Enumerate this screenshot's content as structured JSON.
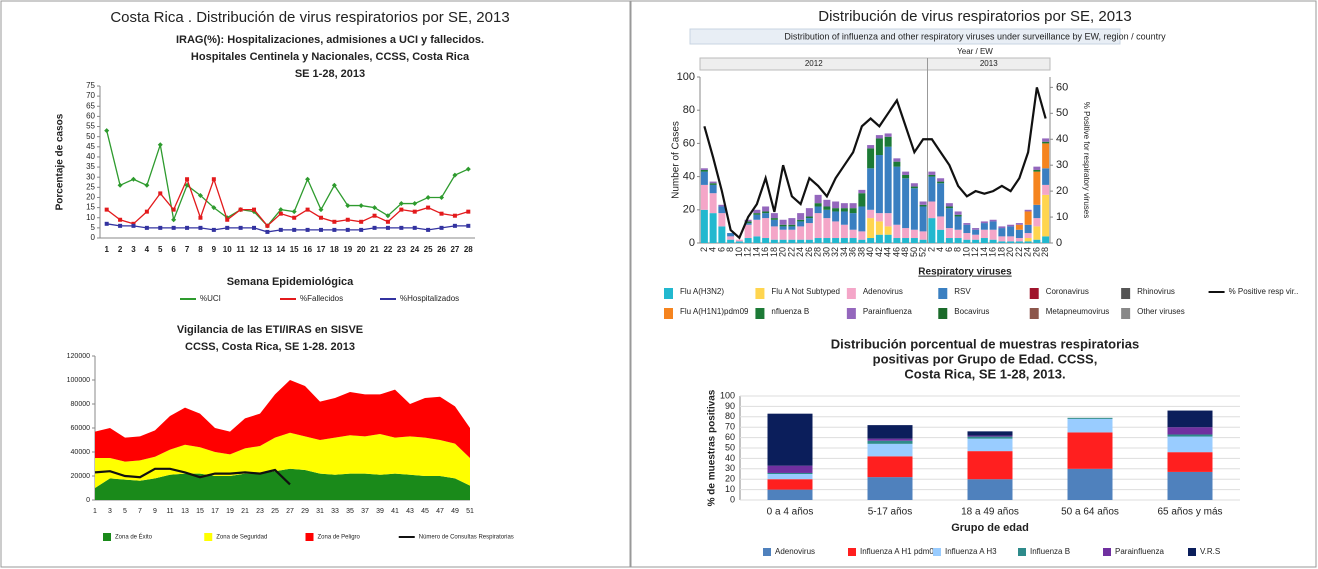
{
  "heading": "Costa Rica . Distribución de virus respiratorios por SE, 2013",
  "chart_data": [
    {
      "type": "line",
      "title": [
        "IRAG(%): Hospitalizaciones, admisiones a UCI y fallecidos.",
        "Hospitales Centinela y Nacionales, CCSS, Costa Rica",
        "SE 1-28, 2013"
      ],
      "y_label": "Porcentaje de casos",
      "x_label": "Semana Epidemiológica",
      "categories": [
        "1",
        "2",
        "3",
        "4",
        "5",
        "6",
        "7",
        "8",
        "9",
        "10",
        "11",
        "12",
        "13",
        "14",
        "15",
        "16",
        "17",
        "18",
        "19",
        "20",
        "21",
        "22",
        "23",
        "24",
        "25",
        "26",
        "27",
        "28"
      ],
      "ylim": [
        0,
        75
      ],
      "yticks": [
        0,
        5,
        10,
        15,
        20,
        25,
        30,
        35,
        40,
        45,
        50,
        55,
        60,
        65,
        70,
        75
      ],
      "grid": false,
      "markers": true,
      "series": [
        {
          "name": "%UCI",
          "color": "#2e9b2e",
          "values": [
            53,
            26,
            29,
            26,
            46,
            9,
            26,
            21,
            15,
            10,
            14,
            13,
            6,
            14,
            13,
            29,
            14,
            26,
            16,
            16,
            15,
            11,
            17,
            17,
            20,
            20,
            31,
            34
          ]
        },
        {
          "name": "%Fallecidos",
          "color": "#e31a1c",
          "values": [
            14,
            9,
            7,
            13,
            22,
            14,
            29,
            10,
            29,
            9,
            14,
            14,
            6,
            12,
            10,
            14,
            10,
            8,
            9,
            8,
            11,
            8,
            14,
            13,
            15,
            12,
            11,
            13
          ]
        },
        {
          "name": "%Hospitalizados",
          "color": "#3333a0",
          "values": [
            7,
            6,
            6,
            5,
            5,
            5,
            5,
            5,
            4,
            5,
            5,
            5,
            3,
            4,
            4,
            4,
            4,
            4,
            4,
            4,
            5,
            5,
            5,
            5,
            4,
            5,
            6,
            6
          ]
        }
      ]
    },
    {
      "type": "area",
      "stacked": true,
      "title": [
        "Vigilancia de las ETI/IRAS en SISVE",
        "CCSS, Costa Rica, SE 1-28. 2013"
      ],
      "categories": [
        "1",
        "3",
        "5",
        "7",
        "9",
        "11",
        "13",
        "15",
        "17",
        "19",
        "21",
        "23",
        "25",
        "27",
        "29",
        "31",
        "33",
        "35",
        "37",
        "39",
        "41",
        "43",
        "45",
        "47",
        "49",
        "51"
      ],
      "ylim": [
        0,
        120000
      ],
      "yticks": [
        0,
        20000,
        40000,
        60000,
        80000,
        100000,
        120000
      ],
      "grid": false,
      "series": [
        {
          "name": "Zona de Éxito",
          "color": "#1a8a1a",
          "values": [
            10000,
            18000,
            17000,
            16000,
            18000,
            21000,
            22000,
            22000,
            20000,
            20000,
            22000,
            22000,
            24000,
            26000,
            25000,
            22000,
            21000,
            22000,
            22000,
            21000,
            22000,
            21000,
            20000,
            20000,
            18000,
            12000
          ]
        },
        {
          "name": "Zona de Seguridad",
          "color": "#ffff00",
          "values": [
            25000,
            17000,
            15000,
            17000,
            18000,
            21000,
            24000,
            22000,
            20000,
            18000,
            21000,
            23000,
            28000,
            30000,
            28000,
            28000,
            31000,
            32000,
            31000,
            34000,
            30000,
            32000,
            32000,
            30000,
            29000,
            23000
          ]
        },
        {
          "name": "Zona de Peligro",
          "color": "#ff0000",
          "values": [
            22000,
            25000,
            20000,
            20000,
            22000,
            28000,
            31000,
            28000,
            20000,
            19000,
            25000,
            27000,
            36000,
            44000,
            42000,
            32000,
            33000,
            36000,
            35000,
            33000,
            40000,
            27000,
            33000,
            36000,
            31000,
            25000
          ]
        },
        {
          "name": "Número de Consultas Respiratorias",
          "color": "#111111",
          "type": "line",
          "values": [
            23000,
            24000,
            20000,
            19000,
            26000,
            26000,
            23000,
            19000,
            22000,
            22000,
            23000,
            22000,
            25000,
            13000,
            null,
            null,
            null,
            null,
            null,
            null,
            null,
            null,
            null,
            null,
            null,
            null
          ]
        }
      ]
    },
    {
      "type": "bar",
      "stacked": true,
      "title": "Distribución de virus respiratorios por SE, 2013",
      "subtitle": "Distribution of influenza and other respiratory viruses under surveillance by EW, region / country",
      "x_group_title": "Year / EW",
      "x_groups": [
        "2012",
        "2013"
      ],
      "x_label": "Respiratory viruses",
      "y_label": "Number of Cases",
      "y2_label": "% Positive for respiratory viruses",
      "categories": [
        "2",
        "4",
        "6",
        "8",
        "10",
        "12",
        "14",
        "16",
        "18",
        "20",
        "22",
        "24",
        "26",
        "28",
        "30",
        "32",
        "34",
        "36",
        "38",
        "40",
        "42",
        "44",
        "46",
        "48",
        "50",
        "52",
        "2",
        "4",
        "6",
        "8",
        "10",
        "12",
        "14",
        "16",
        "18",
        "20",
        "22",
        "24",
        "26",
        "28"
      ],
      "ylim": [
        0,
        100
      ],
      "yticks": [
        0,
        20,
        40,
        60,
        80,
        100
      ],
      "y2lim": [
        0,
        64
      ],
      "y2ticks": [
        0,
        10,
        20,
        30,
        40,
        50,
        60
      ],
      "grid": false,
      "series": [
        {
          "name": "Flu A(H3N2)",
          "color": "#22b8cf",
          "values": [
            20,
            18,
            10,
            2,
            1,
            3,
            4,
            3,
            2,
            2,
            2,
            2,
            2,
            3,
            3,
            3,
            3,
            3,
            2,
            3,
            5,
            5,
            3,
            3,
            3,
            2,
            15,
            8,
            3,
            3,
            2,
            2,
            3,
            2,
            1,
            1,
            1,
            1,
            2,
            4
          ]
        },
        {
          "name": "Flu A Not Subtyped",
          "color": "#ffd54f",
          "values": [
            0,
            0,
            0,
            0,
            0,
            0,
            0,
            0,
            0,
            0,
            0,
            0,
            0,
            0,
            0,
            0,
            0,
            0,
            0,
            12,
            8,
            5,
            0,
            0,
            0,
            0,
            0,
            0,
            0,
            0,
            0,
            0,
            0,
            0,
            0,
            0,
            0,
            2,
            8,
            25
          ]
        },
        {
          "name": "Adenovirus",
          "color": "#f4a6c8",
          "values": [
            15,
            12,
            8,
            2,
            1,
            8,
            10,
            12,
            8,
            6,
            6,
            8,
            10,
            15,
            12,
            10,
            8,
            5,
            5,
            5,
            5,
            8,
            8,
            6,
            5,
            5,
            10,
            8,
            6,
            5,
            4,
            3,
            5,
            6,
            3,
            3,
            2,
            3,
            5,
            6
          ]
        },
        {
          "name": "RSV",
          "color": "#3a7fc1",
          "values": [
            8,
            5,
            4,
            2,
            0,
            1,
            3,
            3,
            4,
            2,
            2,
            3,
            3,
            4,
            5,
            6,
            8,
            10,
            15,
            25,
            35,
            40,
            35,
            30,
            25,
            15,
            15,
            20,
            12,
            8,
            5,
            3,
            4,
            5,
            5,
            6,
            5,
            5,
            8,
            10
          ]
        },
        {
          "name": "Coronavirus",
          "color": "#a0142c",
          "values": [
            0,
            0,
            0,
            0,
            0,
            0,
            0,
            0,
            0,
            0,
            0,
            0,
            0,
            0,
            0,
            0,
            0,
            0,
            0,
            0,
            0,
            0,
            0,
            0,
            0,
            0,
            0,
            0,
            0,
            0,
            0,
            0,
            0,
            0,
            0,
            0,
            0,
            0,
            0,
            0
          ]
        },
        {
          "name": "Rhinovirus",
          "color": "#555555",
          "values": [
            0,
            0,
            0,
            0,
            0,
            0,
            0,
            0,
            0,
            0,
            0,
            0,
            0,
            0,
            0,
            0,
            0,
            0,
            0,
            0,
            0,
            0,
            0,
            0,
            0,
            0,
            0,
            0,
            0,
            0,
            0,
            0,
            0,
            0,
            0,
            0,
            0,
            0,
            0,
            0
          ]
        },
        {
          "name": "% Positive resp vir..",
          "color": "#111111",
          "type": "line",
          "axis": "y2",
          "values": [
            45,
            33,
            20,
            5,
            2,
            10,
            15,
            25,
            12,
            30,
            18,
            15,
            25,
            22,
            18,
            25,
            30,
            35,
            45,
            48,
            45,
            50,
            55,
            45,
            35,
            40,
            40,
            35,
            30,
            22,
            18,
            20,
            19,
            20,
            22,
            20,
            25,
            35,
            60,
            48
          ]
        },
        {
          "name": "Flu A(H1N1)pdm09",
          "color": "#f5841f",
          "values": [
            0,
            0,
            0,
            0,
            0,
            0,
            0,
            0,
            0,
            0,
            0,
            0,
            0,
            0,
            0,
            0,
            0,
            0,
            0,
            0,
            0,
            0,
            0,
            0,
            0,
            0,
            0,
            0,
            0,
            0,
            0,
            0,
            0,
            0,
            0,
            0,
            3,
            8,
            20,
            15
          ]
        },
        {
          "name": "nfluenza B",
          "color": "#1c7a36",
          "values": [
            1,
            1,
            0,
            0,
            0,
            1,
            1,
            1,
            1,
            1,
            1,
            1,
            1,
            2,
            2,
            2,
            2,
            3,
            8,
            12,
            10,
            6,
            3,
            2,
            1,
            1,
            1,
            1,
            1,
            1,
            0,
            0,
            0,
            0,
            0,
            0,
            0,
            0,
            1,
            1
          ]
        },
        {
          "name": "Parainfluenza",
          "color": "#9467bd",
          "values": [
            1,
            1,
            1,
            0,
            0,
            1,
            2,
            3,
            3,
            3,
            4,
            4,
            5,
            5,
            4,
            4,
            3,
            3,
            2,
            2,
            2,
            2,
            2,
            2,
            2,
            2,
            2,
            2,
            2,
            2,
            1,
            1,
            1,
            1,
            1,
            1,
            1,
            1,
            2,
            2
          ]
        },
        {
          "name": "Bocavirus",
          "color": "#1a6b2a",
          "values": [
            0,
            0,
            0,
            0,
            0,
            0,
            0,
            0,
            0,
            0,
            0,
            0,
            0,
            0,
            0,
            0,
            0,
            0,
            0,
            0,
            0,
            0,
            0,
            0,
            0,
            0,
            0,
            0,
            0,
            0,
            0,
            0,
            0,
            0,
            0,
            0,
            0,
            0,
            0,
            0
          ]
        },
        {
          "name": "Metapneumovirus",
          "color": "#8c564b",
          "values": [
            0,
            0,
            0,
            0,
            0,
            0,
            0,
            0,
            0,
            0,
            0,
            0,
            0,
            0,
            0,
            0,
            0,
            0,
            0,
            0,
            0,
            0,
            0,
            0,
            0,
            0,
            0,
            0,
            0,
            0,
            0,
            0,
            0,
            0,
            0,
            0,
            0,
            0,
            0,
            0
          ]
        },
        {
          "name": "Other viruses",
          "color": "#888888",
          "values": [
            0,
            0,
            0,
            0,
            0,
            0,
            0,
            0,
            0,
            0,
            0,
            0,
            0,
            0,
            0,
            0,
            0,
            0,
            0,
            0,
            0,
            0,
            0,
            0,
            0,
            0,
            0,
            0,
            0,
            0,
            0,
            0,
            0,
            0,
            0,
            0,
            0,
            0,
            0,
            0
          ]
        }
      ]
    },
    {
      "type": "bar",
      "stacked": true,
      "title": [
        "Distribución porcentual de muestras respiratorias",
        "positivas por Grupo de Edad. CCSS,",
        "Costa Rica,  SE 1-28, 2013."
      ],
      "y_label": "% de muestras positivas",
      "x_label": "Grupo de edad",
      "categories": [
        "0 a 4 años",
        "5-17 años",
        "18 a 49 años",
        "50 a 64 años",
        "65 años y más"
      ],
      "ylim": [
        0,
        100
      ],
      "yticks": [
        0,
        10,
        20,
        30,
        40,
        50,
        60,
        70,
        80,
        90,
        100
      ],
      "grid": true,
      "series": [
        {
          "name": "Adenovirus",
          "color": "#4f81bd",
          "values": [
            10,
            22,
            20,
            30,
            27
          ]
        },
        {
          "name": "Influenza A H1 pdm09",
          "color": "#ff1f1f",
          "values": [
            10,
            20,
            27,
            35,
            19
          ]
        },
        {
          "name": "Influenza A H3",
          "color": "#99ccff",
          "values": [
            5,
            12,
            12,
            13,
            15
          ]
        },
        {
          "name": "Influenza B",
          "color": "#2e8b8b",
          "values": [
            1,
            3,
            2,
            1,
            2
          ]
        },
        {
          "name": "Parainfluenza",
          "color": "#7030a0",
          "values": [
            7,
            2,
            1,
            0,
            7
          ]
        },
        {
          "name": "V.R.S",
          "color": "#0b1e5b",
          "values": [
            50,
            13,
            4,
            0,
            16
          ]
        }
      ]
    }
  ]
}
